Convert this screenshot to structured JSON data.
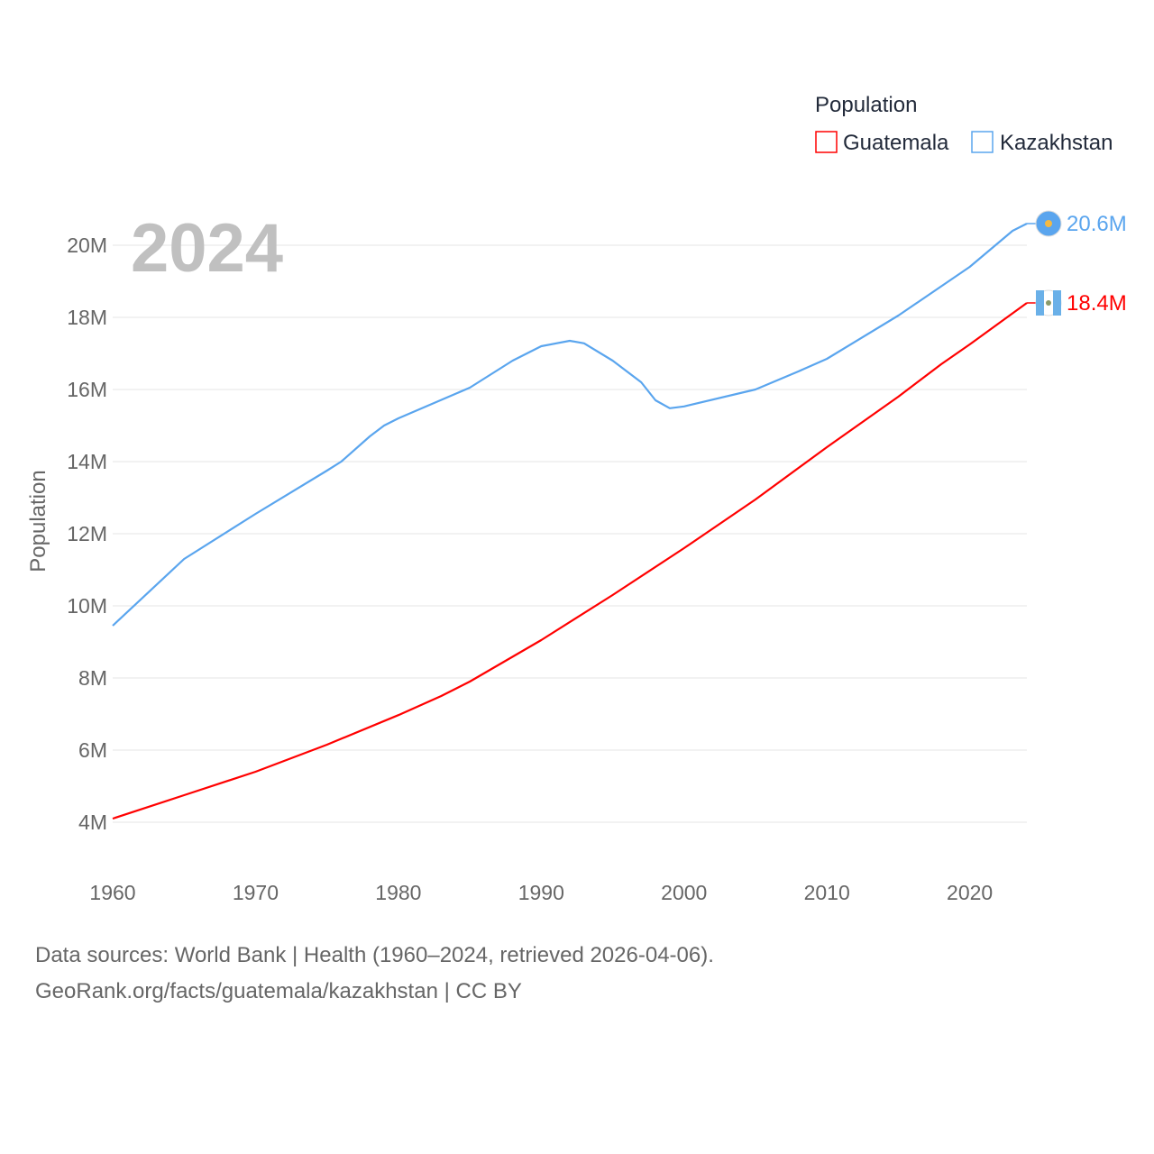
{
  "chart_data": {
    "type": "line",
    "title": "",
    "year_label": "2024",
    "ylabel": "Population",
    "xlabel": "",
    "xlim": [
      1960,
      2024
    ],
    "ylim": [
      4,
      20
    ],
    "x_ticks": [
      "1960",
      "1970",
      "1980",
      "1990",
      "2000",
      "2010",
      "2020"
    ],
    "x_tick_values": [
      1960,
      1970,
      1980,
      1990,
      2000,
      2010,
      2020
    ],
    "y_ticks": [
      "4M",
      "6M",
      "8M",
      "10M",
      "12M",
      "14M",
      "16M",
      "18M",
      "20M"
    ],
    "y_tick_values": [
      4,
      6,
      8,
      10,
      12,
      14,
      16,
      18,
      20
    ],
    "grid": true,
    "legend": {
      "title": "Population",
      "placement": "top-right"
    },
    "series": [
      {
        "name": "Guatemala",
        "color": "#ff0000",
        "end_label": "18.4M",
        "x": [
          1960,
          1965,
          1970,
          1975,
          1980,
          1983,
          1985,
          1990,
          1995,
          2000,
          2005,
          2010,
          2015,
          2018,
          2020,
          2024
        ],
        "values": [
          4.1,
          4.75,
          5.4,
          6.15,
          6.97,
          7.5,
          7.9,
          9.05,
          10.3,
          11.6,
          12.95,
          14.4,
          15.8,
          16.7,
          17.25,
          18.4
        ]
      },
      {
        "name": "Kazakhstan",
        "color": "#5aa5ee",
        "end_label": "20.6M",
        "x": [
          1960,
          1965,
          1970,
          1975,
          1976,
          1978,
          1979,
          1980,
          1985,
          1988,
          1990,
          1992,
          1993,
          1995,
          1997,
          1998,
          1999,
          2000,
          2005,
          2008,
          2010,
          2015,
          2020,
          2023,
          2024
        ],
        "values": [
          9.45,
          11.3,
          12.55,
          13.75,
          14.0,
          14.7,
          15.0,
          15.2,
          16.05,
          16.8,
          17.2,
          17.35,
          17.28,
          16.8,
          16.2,
          15.7,
          15.48,
          15.53,
          16.0,
          16.5,
          16.85,
          18.05,
          19.4,
          20.4,
          20.6
        ]
      }
    ]
  },
  "footer": {
    "line1": "Data sources: World Bank | Health (1960–2024, retrieved 2026-04-06).",
    "line2": "GeoRank.org/facts/guatemala/kazakhstan | CC BY"
  }
}
